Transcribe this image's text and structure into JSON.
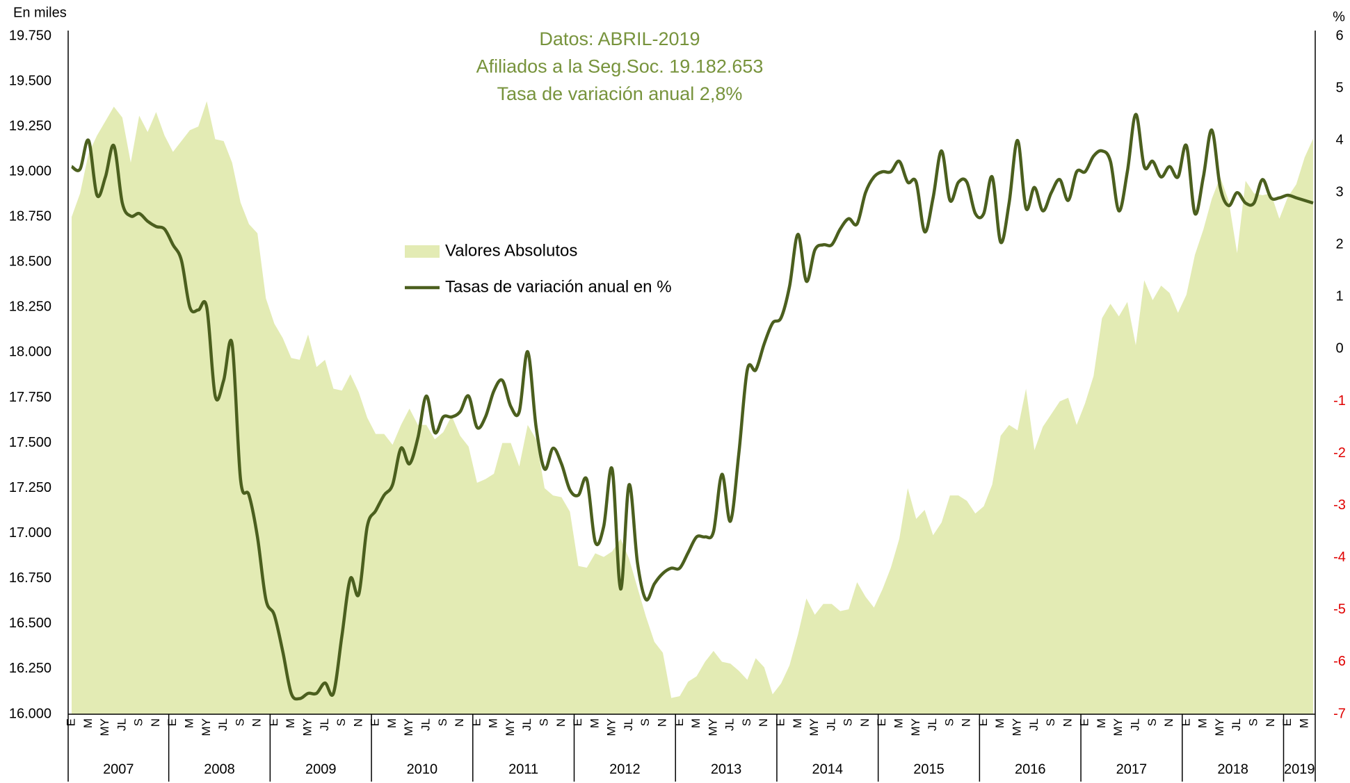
{
  "chart_data": {
    "type": "combo",
    "annotations": [
      "Datos: ABRIL-2019",
      "Afiliados a la Seg.Soc. 19.182.653",
      "Tasa de variación anual 2,8%"
    ],
    "ylabel": "En miles",
    "y2label": "%",
    "categories": [
      "E",
      null,
      "M",
      null,
      "MY",
      null,
      "JL",
      null,
      "S",
      null,
      "N",
      null,
      "E",
      null,
      "M",
      null,
      "MY",
      null,
      "JL",
      null,
      "S",
      null,
      "N",
      null,
      "E",
      null,
      "M",
      null,
      "MY",
      null,
      "JL",
      null,
      "S",
      null,
      "N",
      null,
      "E",
      null,
      "M",
      null,
      "MY",
      null,
      "JL",
      null,
      "S",
      null,
      "N",
      null,
      "E",
      null,
      "M",
      null,
      "MY",
      null,
      "JL",
      null,
      "S",
      null,
      "N",
      null,
      "E",
      null,
      "M",
      null,
      "MY",
      null,
      "JL",
      null,
      "S",
      null,
      "N",
      null,
      "E",
      null,
      "M",
      null,
      "MY",
      null,
      "JL",
      null,
      "S",
      null,
      "N",
      null,
      "E",
      null,
      "M",
      null,
      "MY",
      null,
      "JL",
      null,
      "S",
      null,
      "N",
      null,
      "E",
      null,
      "M",
      null,
      "MY",
      null,
      "JL",
      null,
      "S",
      null,
      "N",
      null,
      "E",
      null,
      "M",
      null,
      "MY",
      null,
      "JL",
      null,
      "S",
      null,
      "N",
      null,
      "E",
      null,
      "M",
      null,
      "MY",
      null,
      "JL",
      null,
      "S",
      null,
      "N",
      null,
      "E",
      null,
      "M",
      null,
      "MY",
      null,
      "JL",
      null,
      "S",
      null,
      "N",
      null,
      "E",
      null,
      "M",
      null
    ],
    "years": [
      "2007",
      "2008",
      "2009",
      "2010",
      "2011",
      "2012",
      "2013",
      "2014",
      "2015",
      "2016",
      "2017",
      "2018",
      "2019"
    ],
    "series": [
      {
        "name": "Valores Absolutos",
        "type": "area",
        "color": "#e3ebb4",
        "values": [
          18750,
          18880,
          19100,
          19200,
          19280,
          19360,
          19300,
          19050,
          19310,
          19220,
          19330,
          19200,
          19110,
          19170,
          19230,
          19250,
          19390,
          19180,
          19170,
          19050,
          18830,
          18710,
          18660,
          18300,
          18160,
          18080,
          17970,
          17960,
          18100,
          17920,
          17960,
          17800,
          17790,
          17880,
          17780,
          17640,
          17550,
          17550,
          17490,
          17600,
          17690,
          17600,
          17600,
          17520,
          17560,
          17650,
          17540,
          17480,
          17280,
          17300,
          17330,
          17500,
          17500,
          17370,
          17600,
          17520,
          17250,
          17210,
          17200,
          17120,
          16820,
          16810,
          16890,
          16870,
          16900,
          16970,
          16860,
          16700,
          16540,
          16400,
          16340,
          16090,
          16100,
          16180,
          16210,
          16290,
          16350,
          16290,
          16280,
          16240,
          16190,
          16310,
          16260,
          16110,
          16170,
          16270,
          16440,
          16640,
          16550,
          16610,
          16610,
          16570,
          16580,
          16730,
          16650,
          16590,
          16690,
          16810,
          16970,
          17250,
          17080,
          17130,
          16990,
          17060,
          17210,
          17210,
          17180,
          17110,
          17150,
          17270,
          17540,
          17600,
          17570,
          17800,
          17460,
          17590,
          17660,
          17730,
          17750,
          17600,
          17720,
          17870,
          18190,
          18270,
          18200,
          18280,
          18040,
          18400,
          18290,
          18370,
          18330,
          18220,
          18320,
          18540,
          18680,
          18850,
          18970,
          18840,
          18550,
          18950,
          18880,
          18870,
          18880,
          18740,
          18860,
          18930,
          19080,
          19183
        ]
      },
      {
        "name": "Tasas de variación anual en %",
        "type": "line",
        "axis": "y2",
        "color": "#4b5f1e",
        "values": [
          3.5,
          3.45,
          4.0,
          2.95,
          3.3,
          3.9,
          2.8,
          2.55,
          2.6,
          2.45,
          2.35,
          2.3,
          2.0,
          1.7,
          0.8,
          0.75,
          0.8,
          -0.9,
          -0.6,
          0.1,
          -2.5,
          -2.8,
          -3.6,
          -4.8,
          -5.1,
          -5.8,
          -6.6,
          -6.7,
          -6.6,
          -6.6,
          -6.4,
          -6.6,
          -5.5,
          -4.4,
          -4.7,
          -3.4,
          -3.1,
          -2.8,
          -2.6,
          -1.9,
          -2.2,
          -1.7,
          -0.9,
          -1.6,
          -1.3,
          -1.3,
          -1.2,
          -0.9,
          -1.5,
          -1.3,
          -0.8,
          -0.6,
          -1.1,
          -1.2,
          -0.05,
          -1.5,
          -2.3,
          -1.9,
          -2.2,
          -2.7,
          -2.8,
          -2.5,
          -3.7,
          -3.4,
          -2.3,
          -4.6,
          -2.6,
          -4.1,
          -4.8,
          -4.5,
          -4.3,
          -4.2,
          -4.2,
          -3.9,
          -3.6,
          -3.6,
          -3.5,
          -2.4,
          -3.3,
          -2.0,
          -0.4,
          -0.4,
          0.1,
          0.5,
          0.6,
          1.2,
          2.2,
          1.3,
          1.9,
          2.0,
          2.0,
          2.3,
          2.5,
          2.4,
          3.0,
          3.3,
          3.4,
          3.4,
          3.6,
          3.2,
          3.2,
          2.25,
          2.9,
          3.8,
          2.85,
          3.2,
          3.2,
          2.6,
          2.6,
          3.3,
          2.05,
          2.8,
          4.0,
          2.7,
          3.1,
          2.65,
          3.0,
          3.25,
          2.85,
          3.4,
          3.4,
          3.7,
          3.8,
          3.6,
          2.65,
          3.4,
          4.5,
          3.5,
          3.6,
          3.3,
          3.5,
          3.3,
          3.9,
          2.6,
          3.3,
          4.2,
          3.1,
          2.75,
          3.0,
          2.8,
          2.8,
          3.25,
          2.9,
          2.9,
          2.95,
          2.9,
          2.85,
          2.8
        ]
      }
    ],
    "ylim": [
      16000,
      19750
    ],
    "yticks": [
      {
        "value": 16000,
        "label": "16.000"
      },
      {
        "value": 16250,
        "label": "16.250"
      },
      {
        "value": 16500,
        "label": "16.500"
      },
      {
        "value": 16750,
        "label": "16.750"
      },
      {
        "value": 17000,
        "label": "17.000"
      },
      {
        "value": 17250,
        "label": "17.250"
      },
      {
        "value": 17500,
        "label": "17.500"
      },
      {
        "value": 17750,
        "label": "17.750"
      },
      {
        "value": 18000,
        "label": "18.000"
      },
      {
        "value": 18250,
        "label": "18.250"
      },
      {
        "value": 18500,
        "label": "18.500"
      },
      {
        "value": 18750,
        "label": "18.750"
      },
      {
        "value": 19000,
        "label": "19.000"
      },
      {
        "value": 19250,
        "label": "19.250"
      },
      {
        "value": 19500,
        "label": "19.500"
      },
      {
        "value": 19750,
        "label": "19.750"
      }
    ],
    "y2lim": [
      -7,
      6
    ],
    "y2ticks": [
      -7,
      -6,
      -5,
      -4,
      -3,
      -2,
      -1,
      0,
      1,
      2,
      3,
      4,
      5,
      6
    ],
    "y2_negative_tick_color": "#e00000",
    "annotation_color": "#77933c",
    "grid": false
  }
}
